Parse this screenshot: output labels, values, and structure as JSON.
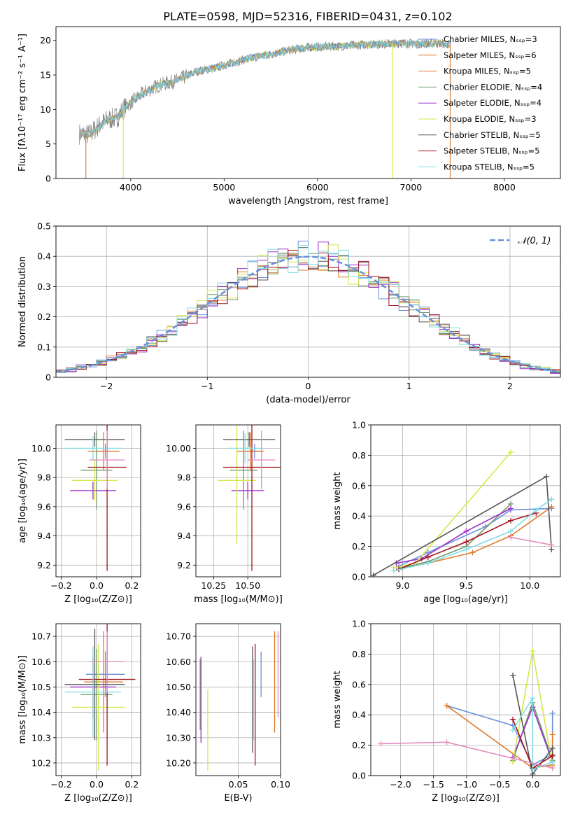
{
  "title": "PLATE=0598, MJD=52316, FIBERID=0431, z=0.102",
  "colors": {
    "blue": "#6a8fdc",
    "orange": "#e07a2a",
    "green": "#6f9a6a",
    "purple": "#9b2fc9",
    "yellow": "#d6e64a",
    "darkgray": "#555555",
    "red": "#a3141e",
    "cyan": "#7fdde4",
    "pink": "#e48cbd",
    "grid": "#b0b0b0",
    "data": "#808080"
  },
  "chart_data": [
    {
      "id": "spectrum",
      "type": "line",
      "xlabel": "wavelength [Angstrom, rest frame]",
      "ylabel": "Flux [fλ10⁻¹⁷ erg cm⁻² s⁻¹ A⁻¹]",
      "xlim": [
        3200,
        8600
      ],
      "ylim": [
        0,
        22
      ],
      "xticks": [
        4000,
        5000,
        6000,
        7000,
        8000
      ],
      "yticks": [
        0,
        5,
        10,
        15,
        20
      ],
      "grid": false,
      "legend_position": "top-right",
      "series": [
        {
          "name": "Chabrier MILES, Nₛₛₚ=3",
          "color": "blue"
        },
        {
          "name": "Salpeter MILES, Nₛₛₚ=6",
          "color": "orange"
        },
        {
          "name": "Kroupa MILES, Nₛₛₚ=5",
          "color": "orange"
        },
        {
          "name": "Chabrier ELODIE, Nₛₛₚ=4",
          "color": "green"
        },
        {
          "name": "Salpeter ELODIE, Nₛₛₚ=4",
          "color": "purple"
        },
        {
          "name": "Kroupa ELODIE, Nₛₛₚ=3",
          "color": "yellow"
        },
        {
          "name": "Chabrier STELIB, Nₛₛₚ=5",
          "color": "darkgray"
        },
        {
          "name": "Salpeter STELIB, Nₛₛₚ=5",
          "color": "red"
        },
        {
          "name": "Kroupa STELIB, Nₛₛₚ=5",
          "color": "cyan"
        }
      ],
      "continuum": {
        "x": [
          3450,
          3550,
          3650,
          3750,
          3850,
          3950,
          4050,
          4150,
          4300,
          4500,
          4700,
          4900,
          5100,
          5300,
          5500,
          5700,
          5900,
          6100,
          6300,
          6500,
          6700,
          6900,
          7100,
          7300,
          7420
        ],
        "y": [
          6.5,
          6.3,
          7.5,
          8.5,
          8.8,
          10.5,
          11.5,
          12.5,
          13.5,
          14.2,
          15.5,
          16.0,
          16.8,
          17.5,
          18.0,
          18.6,
          19.0,
          19.1,
          19.2,
          19.4,
          19.5,
          19.6,
          19.5,
          19.6,
          19.4
        ]
      },
      "model_cutoffs": [
        {
          "x": 3520,
          "color": "orange"
        },
        {
          "x": 3920,
          "color": "yellow"
        },
        {
          "x": 6800,
          "color": "yellow"
        },
        {
          "x": 7420,
          "color": "orange"
        }
      ]
    },
    {
      "id": "residuals",
      "type": "histogram",
      "xlabel": "(data-model)/error",
      "ylabel": "Normed distribution",
      "xlim": [
        -2.5,
        2.5
      ],
      "ylim": [
        0,
        0.5
      ],
      "xticks": [
        -2,
        -1,
        0,
        1,
        2
      ],
      "yticks": [
        0.0,
        0.1,
        0.2,
        0.3,
        0.4,
        0.5
      ],
      "grid": true,
      "legend_position": "top-right",
      "legend": "𝒩(0, 1)",
      "bins": 50,
      "bin_colors": [
        "blue",
        "orange",
        "green",
        "purple",
        "yellow",
        "darkgray",
        "red",
        "cyan"
      ]
    },
    {
      "id": "age-vs-Z",
      "type": "errorbar",
      "xlabel": "Z [log₁₀(Z/Z⊙)]",
      "ylabel": "age  [log₁₀(age/yr)]",
      "xlim": [
        -0.23,
        0.25
      ],
      "ylim": [
        9.12,
        10.16
      ],
      "xticks": [
        -0.2,
        0.0,
        0.2
      ],
      "yticks": [
        9.2,
        9.4,
        9.6,
        9.8,
        10.0
      ],
      "grid": true,
      "points": [
        {
          "x": 0.05,
          "y": 9.98,
          "xerr": 0.03,
          "yerr": 0.05,
          "color": "blue"
        },
        {
          "x": 0.04,
          "y": 9.98,
          "xerr": 0.09,
          "yerr": 0.13,
          "color": "orange"
        },
        {
          "x": 0.0,
          "y": 9.85,
          "xerr": 0.09,
          "yerr": 0.27,
          "color": "green"
        },
        {
          "x": -0.02,
          "y": 9.71,
          "xerr": 0.13,
          "yerr": 0.06,
          "color": "purple"
        },
        {
          "x": -0.01,
          "y": 9.78,
          "xerr": 0.13,
          "yerr": 0.14,
          "color": "yellow"
        },
        {
          "x": -0.01,
          "y": 10.06,
          "xerr": 0.17,
          "yerr": 0.05,
          "color": "darkgray"
        },
        {
          "x": 0.06,
          "y": 9.87,
          "xerr": 0.11,
          "yerr": 0.71,
          "color": "red"
        },
        {
          "x": -0.02,
          "y": 10.0,
          "xerr": 0.16,
          "yerr": 0.08,
          "color": "cyan"
        },
        {
          "x": 0.06,
          "y": 9.92,
          "xerr": 0.1,
          "yerr": 0.2,
          "color": "pink"
        }
      ]
    },
    {
      "id": "age-vs-mass",
      "type": "errorbar",
      "xlabel": "mass [log₁₀(M/M⊙)]",
      "ylabel": "",
      "xlim": [
        10.12,
        10.74
      ],
      "ylim": [
        9.12,
        10.16
      ],
      "xticks": [
        10.25,
        10.5
      ],
      "yticks": [
        9.2,
        9.4,
        9.6,
        9.8,
        10.0
      ],
      "grid": true,
      "points": [
        {
          "x": 10.55,
          "y": 9.98,
          "xerr": 0.04,
          "yerr": 0.05,
          "color": "blue"
        },
        {
          "x": 10.52,
          "y": 9.98,
          "xerr": 0.1,
          "yerr": 0.13,
          "color": "orange"
        },
        {
          "x": 10.47,
          "y": 9.85,
          "xerr": 0.1,
          "yerr": 0.27,
          "color": "green"
        },
        {
          "x": 10.5,
          "y": 9.71,
          "xerr": 0.12,
          "yerr": 0.06,
          "color": "purple"
        },
        {
          "x": 10.42,
          "y": 9.78,
          "xerr": 0.14,
          "yerr": 0.44,
          "color": "yellow"
        },
        {
          "x": 10.51,
          "y": 10.06,
          "xerr": 0.19,
          "yerr": 0.05,
          "color": "darkgray"
        },
        {
          "x": 10.53,
          "y": 9.87,
          "xerr": 0.21,
          "yerr": 0.71,
          "color": "red"
        },
        {
          "x": 10.48,
          "y": 10.0,
          "xerr": 0.12,
          "yerr": 0.1,
          "color": "cyan"
        },
        {
          "x": 10.6,
          "y": 9.92,
          "xerr": 0.1,
          "yerr": 0.2,
          "color": "pink"
        }
      ]
    },
    {
      "id": "weight-vs-age",
      "type": "line",
      "xlabel": "age  [log₁₀(age/yr)]",
      "ylabel": "mass weight",
      "xlim": [
        8.75,
        10.24
      ],
      "ylim": [
        0,
        1.0
      ],
      "xticks": [
        9.0,
        9.5,
        10.0
      ],
      "yticks": [
        0.0,
        0.2,
        0.4,
        0.6,
        0.8,
        1.0
      ],
      "grid": true,
      "series": [
        {
          "color": "blue",
          "x": [
            8.97,
            9.2,
            9.65,
            9.85,
            10.17
          ],
          "y": [
            0.07,
            0.16,
            0.33,
            0.44,
            0.45
          ]
        },
        {
          "color": "orange",
          "x": [
            8.97,
            9.2,
            9.55,
            9.85,
            10.17
          ],
          "y": [
            0.05,
            0.09,
            0.16,
            0.27,
            0.46
          ]
        },
        {
          "color": "green",
          "x": [
            9.0,
            9.2,
            9.5,
            9.85
          ],
          "y": [
            0.06,
            0.1,
            0.2,
            0.48
          ]
        },
        {
          "color": "purple",
          "x": [
            8.95,
            9.15,
            9.5,
            9.85
          ],
          "y": [
            0.09,
            0.12,
            0.3,
            0.45
          ]
        },
        {
          "color": "yellow",
          "x": [
            8.93,
            9.1,
            9.85
          ],
          "y": [
            0.06,
            0.09,
            0.82
          ]
        },
        {
          "color": "darkgray",
          "x": [
            8.77,
            10.13,
            10.17
          ],
          "y": [
            0.01,
            0.66,
            0.18
          ]
        },
        {
          "color": "red",
          "x": [
            8.97,
            9.2,
            9.5,
            9.85,
            10.05
          ],
          "y": [
            0.05,
            0.13,
            0.23,
            0.37,
            0.42
          ]
        },
        {
          "color": "cyan",
          "x": [
            8.93,
            9.2,
            9.5,
            9.85,
            10.05,
            10.17
          ],
          "y": [
            0.04,
            0.09,
            0.18,
            0.3,
            0.44,
            0.51
          ]
        },
        {
          "color": "pink",
          "x": [
            9.85,
            10.17
          ],
          "y": [
            0.26,
            0.21
          ]
        }
      ]
    },
    {
      "id": "mass-vs-Z",
      "type": "errorbar",
      "xlabel": "Z [log₁₀(Z/Z⊙)]",
      "ylabel": "mass [log₁₀(M/M⊙)]",
      "xlim": [
        -0.23,
        0.25
      ],
      "ylim": [
        10.15,
        10.75
      ],
      "xticks": [
        -0.2,
        0.0,
        0.2
      ],
      "yticks": [
        10.2,
        10.3,
        10.4,
        10.5,
        10.6,
        10.7
      ],
      "grid": true,
      "points": [
        {
          "x": 0.05,
          "y": 10.55,
          "xerr": 0.11,
          "yerr": 0.09,
          "color": "blue"
        },
        {
          "x": 0.04,
          "y": 10.52,
          "xerr": 0.11,
          "yerr": 0.2,
          "color": "orange"
        },
        {
          "x": 0.0,
          "y": 10.47,
          "xerr": 0.09,
          "yerr": 0.18,
          "color": "green"
        },
        {
          "x": -0.02,
          "y": 10.5,
          "xerr": 0.13,
          "yerr": 0.12,
          "color": "purple"
        },
        {
          "x": 0.01,
          "y": 10.42,
          "xerr": 0.15,
          "yerr": 0.25,
          "color": "yellow"
        },
        {
          "x": -0.01,
          "y": 10.51,
          "xerr": 0.17,
          "yerr": 0.22,
          "color": "darkgray"
        },
        {
          "x": 0.06,
          "y": 10.53,
          "xerr": 0.16,
          "yerr": 0.34,
          "color": "red"
        },
        {
          "x": -0.02,
          "y": 10.48,
          "xerr": 0.16,
          "yerr": 0.18,
          "color": "cyan"
        },
        {
          "x": 0.06,
          "y": 10.6,
          "xerr": 0.1,
          "yerr": 0.12,
          "color": "pink"
        }
      ]
    },
    {
      "id": "mass-vs-ebv",
      "type": "errorbar",
      "xlabel": "E(B-V)",
      "ylabel": "",
      "xlim": [
        0.0,
        0.1
      ],
      "ylim": [
        10.15,
        10.75
      ],
      "xticks": [
        0.05,
        0.1
      ],
      "yticks": [
        10.2,
        10.3,
        10.4,
        10.5,
        10.6,
        10.7
      ],
      "grid": true,
      "points": [
        {
          "x": 0.077,
          "y": 10.55,
          "yerr": 0.09,
          "color": "blue"
        },
        {
          "x": 0.093,
          "y": 10.52,
          "yerr": 0.2,
          "color": "orange"
        },
        {
          "x": 0.005,
          "y": 10.47,
          "yerr": 0.14,
          "color": "green"
        },
        {
          "x": 0.006,
          "y": 10.45,
          "yerr": 0.17,
          "color": "purple"
        },
        {
          "x": 0.014,
          "y": 10.33,
          "yerr": 0.16,
          "color": "yellow"
        },
        {
          "x": 0.067,
          "y": 10.45,
          "yerr": 0.21,
          "color": "darkgray"
        },
        {
          "x": 0.07,
          "y": 10.43,
          "yerr": 0.24,
          "color": "red"
        },
        {
          "x": 0.068,
          "y": 10.45,
          "yerr": 0.16,
          "color": "cyan"
        },
        {
          "x": 0.097,
          "y": 10.55,
          "yerr": 0.17,
          "color": "pink"
        }
      ]
    },
    {
      "id": "weight-vs-Z",
      "type": "line",
      "xlabel": "Z [log₁₀(Z/Z⊙)]",
      "ylabel": "mass weight",
      "xlim": [
        -2.45,
        0.42
      ],
      "ylim": [
        0,
        1.0
      ],
      "xticks": [
        -2.0,
        -1.5,
        -1.0,
        -0.5,
        0.0
      ],
      "yticks": [
        0.0,
        0.2,
        0.4,
        0.6,
        0.8,
        1.0
      ],
      "grid": true,
      "series": [
        {
          "color": "blue",
          "x": [
            -1.3,
            -0.3,
            0.0,
            0.3,
            0.3
          ],
          "y": [
            0.46,
            0.33,
            0.07,
            0.14,
            0.41
          ]
        },
        {
          "color": "orange",
          "x": [
            -1.3,
            0.0,
            0.3,
            0.3
          ],
          "y": [
            0.46,
            0.05,
            0.07,
            0.27
          ]
        },
        {
          "color": "green",
          "x": [
            -0.3,
            0.0,
            0.3
          ],
          "y": [
            0.1,
            0.48,
            0.1
          ]
        },
        {
          "color": "purple",
          "x": [
            -0.3,
            0.0,
            0.3
          ],
          "y": [
            0.12,
            0.45,
            0.09
          ]
        },
        {
          "color": "yellow",
          "x": [
            -0.3,
            0.0,
            0.3
          ],
          "y": [
            0.09,
            0.82,
            0.06
          ]
        },
        {
          "color": "darkgray",
          "x": [
            -0.3,
            0.0,
            0.3,
            0.3
          ],
          "y": [
            0.66,
            0.01,
            0.18,
            0.09
          ]
        },
        {
          "color": "red",
          "x": [
            -0.3,
            0.0,
            0.3
          ],
          "y": [
            0.37,
            0.05,
            0.13
          ]
        },
        {
          "color": "cyan",
          "x": [
            -0.3,
            0.0,
            0.0,
            0.3
          ],
          "y": [
            0.3,
            0.51,
            0.04,
            0.09
          ]
        },
        {
          "color": "pink",
          "x": [
            -2.3,
            -1.3,
            0.3
          ],
          "y": [
            0.21,
            0.22,
            0.05
          ]
        }
      ]
    }
  ]
}
